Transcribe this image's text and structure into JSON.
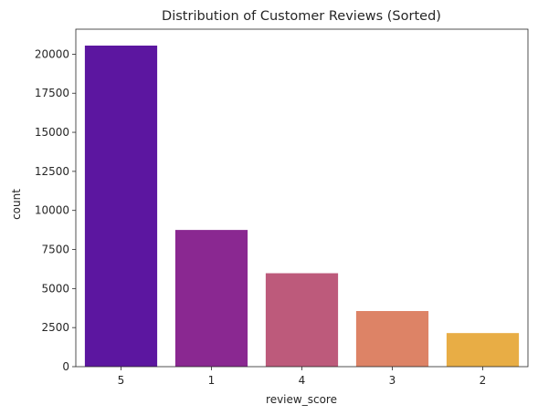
{
  "chart_data": {
    "type": "bar",
    "title": "Distribution of Customer Reviews (Sorted)",
    "xlabel": "review_score",
    "ylabel": "count",
    "categories": [
      "5",
      "1",
      "4",
      "3",
      "2"
    ],
    "values": [
      20550,
      8750,
      5980,
      3560,
      2150
    ],
    "ylim": [
      0,
      21600
    ],
    "yticks": [
      0,
      2500,
      5000,
      7500,
      10000,
      12500,
      15000,
      17500,
      20000
    ],
    "colors": [
      "#5c16a0",
      "#8a2891",
      "#bd5a7b",
      "#dd8366",
      "#e8ad45"
    ],
    "grid": false,
    "legend": "none"
  }
}
